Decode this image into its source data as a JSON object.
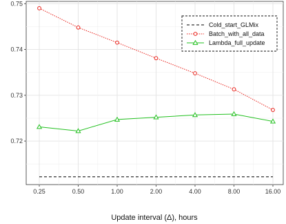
{
  "chart_data": {
    "type": "line",
    "title": "",
    "xlabel": "Update interval (Δ), hours",
    "ylabel": "",
    "categories": [
      "0.25",
      "0.50",
      "1.00",
      "2.00",
      "4.00",
      "8.00",
      "16.00"
    ],
    "ylim": [
      0.7105,
      0.7505
    ],
    "yticks": [
      "0.72",
      "0.73",
      "0.74",
      "0.75"
    ],
    "ytick_values": [
      0.72,
      0.73,
      0.74,
      0.75
    ],
    "grid": true,
    "legend_position": "top-right",
    "series": [
      {
        "name": "Cold_start_GLMix",
        "values": [
          0.7122,
          0.7122,
          0.7122,
          0.7122,
          0.7122,
          0.7122,
          0.7122
        ],
        "color": "#000000",
        "line": "dashed",
        "marker": "none"
      },
      {
        "name": "Batch_with_all_data",
        "values": [
          0.749,
          0.7448,
          0.7415,
          0.7381,
          0.7348,
          0.7313,
          0.7268
        ],
        "color": "#e8211a",
        "line": "dotted",
        "marker": "circle"
      },
      {
        "name": "Lambda_full_update",
        "values": [
          0.7231,
          0.7222,
          0.7247,
          0.7252,
          0.7257,
          0.7259,
          0.7243
        ],
        "color": "#22c01f",
        "line": "solid",
        "marker": "triangle"
      }
    ]
  }
}
